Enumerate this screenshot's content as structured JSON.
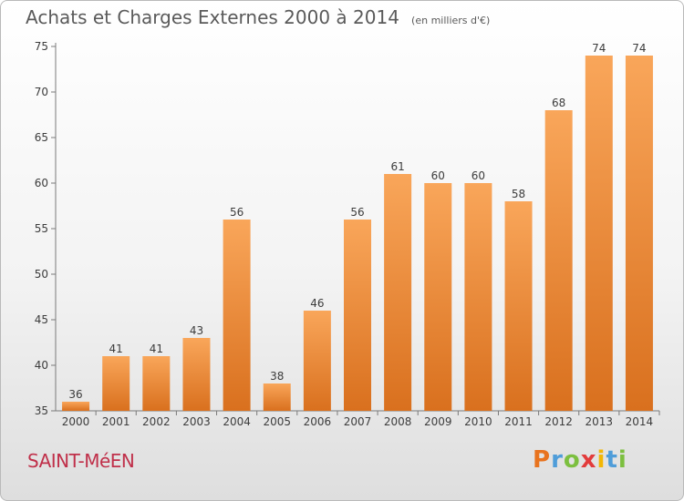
{
  "chart_data": {
    "type": "bar",
    "title": "Achats et Charges Externes 2000 à 2014",
    "subtitle": "(en milliers d'€)",
    "categories": [
      "2000",
      "2001",
      "2002",
      "2003",
      "2004",
      "2005",
      "2006",
      "2007",
      "2008",
      "2009",
      "2010",
      "2011",
      "2012",
      "2013",
      "2014"
    ],
    "values": [
      36,
      41,
      41,
      43,
      56,
      38,
      46,
      56,
      61,
      60,
      60,
      58,
      68,
      74,
      74
    ],
    "ylim": [
      35,
      75
    ],
    "yticks": [
      35,
      40,
      45,
      50,
      55,
      60,
      65,
      70,
      75
    ],
    "grid": false,
    "bar_color_top": "#f9a65a",
    "bar_color_bottom": "#d9701e"
  },
  "footer": {
    "commune": "SAINT-MéEN",
    "brand_letters": [
      "P",
      "r",
      "o",
      "x",
      "i",
      "t",
      "i"
    ],
    "brand_colors": [
      "#e8731e",
      "#4f9dd9",
      "#7cbf3f",
      "#e23b3b",
      "#f2b705",
      "#4f9dd9",
      "#7cbf3f"
    ]
  }
}
